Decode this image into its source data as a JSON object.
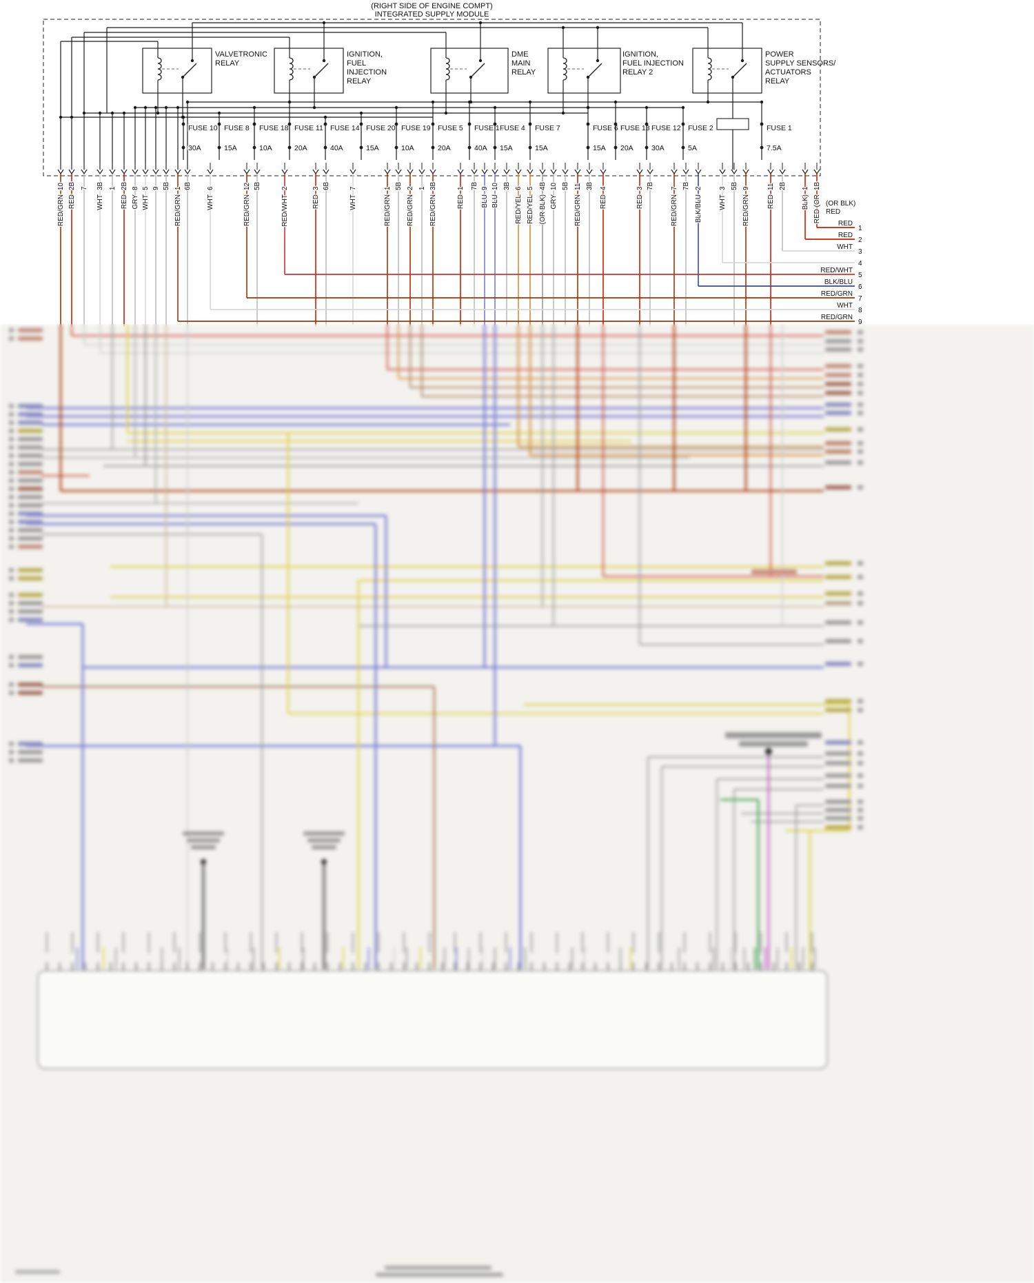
{
  "header": {
    "location": "(RIGHT SIDE OF ENGINE COMPT)",
    "title": "INTEGRATED SUPPLY MODULE"
  },
  "corner": {
    "line1": "(OR BLK)",
    "line2": "RED"
  },
  "relays": [
    {
      "lines": [
        "VALVETRONIC",
        "RELAY"
      ]
    },
    {
      "lines": [
        "IGNITION,",
        "FUEL",
        "INJECTION",
        "RELAY"
      ]
    },
    {
      "lines": [
        "DME",
        "MAIN",
        "RELAY"
      ]
    },
    {
      "lines": [
        "IGNITION,",
        "FUEL INJECTION",
        "RELAY 2"
      ]
    },
    {
      "lines": [
        "POWER",
        "SUPPLY SENSORS/",
        "ACTUATORS",
        "RELAY"
      ]
    }
  ],
  "fuses": [
    {
      "name": "FUSE 10",
      "amp": "30A"
    },
    {
      "name": "FUSE 8",
      "amp": "15A"
    },
    {
      "name": "FUSE 18",
      "amp": "10A"
    },
    {
      "name": "FUSE 11",
      "amp": "20A"
    },
    {
      "name": "FUSE 14",
      "amp": "40A"
    },
    {
      "name": "FUSE 20",
      "amp": "15A"
    },
    {
      "name": "FUSE 19",
      "amp": "10A"
    },
    {
      "name": "FUSE 5",
      "amp": "20A"
    },
    {
      "name": "FUSE 15",
      "amp": "40A"
    },
    {
      "name": "FUSE 4",
      "amp": "15A"
    },
    {
      "name": "FUSE 7",
      "amp": "15A"
    },
    {
      "name": "FUSE 6",
      "amp": "15A"
    },
    {
      "name": "FUSE 13",
      "amp": "20A"
    },
    {
      "name": "FUSE 12",
      "amp": "30A"
    },
    {
      "name": "FUSE 2",
      "amp": "5A"
    },
    {
      "name": "FUSE 1",
      "amp": "7.5A"
    }
  ],
  "pins": [
    {
      "pin": "10",
      "color": "RED/GRN"
    },
    {
      "pin": "2B",
      "color": "RED"
    },
    {
      "pin": "7",
      "color": ""
    },
    {
      "pin": "3B",
      "color": "WHT"
    },
    {
      "pin": "1",
      "color": ""
    },
    {
      "pin": "2B",
      "color": "RED"
    },
    {
      "pin": "8",
      "color": "GRY"
    },
    {
      "pin": "5",
      "color": "WHT"
    },
    {
      "pin": "9",
      "color": ""
    },
    {
      "pin": "5B",
      "color": ""
    },
    {
      "pin": "1",
      "color": "RED/GRN"
    },
    {
      "pin": "6B",
      "color": ""
    },
    {
      "pin": "6",
      "color": "WHT"
    },
    {
      "pin": "12",
      "color": "RED/GRN"
    },
    {
      "pin": "5B",
      "color": ""
    },
    {
      "pin": "2",
      "color": "RED/WHT"
    },
    {
      "pin": "3",
      "color": "RED"
    },
    {
      "pin": "6B",
      "color": ""
    },
    {
      "pin": "7",
      "color": "WHT"
    },
    {
      "pin": "1",
      "color": "RED/GRN"
    },
    {
      "pin": "5B",
      "color": ""
    },
    {
      "pin": "2",
      "color": "RED/GRN"
    },
    {
      "pin": "1",
      "color": ""
    },
    {
      "pin": "3B",
      "color": "RED/GRN"
    },
    {
      "pin": "1",
      "color": "RED"
    },
    {
      "pin": "7B",
      "color": ""
    },
    {
      "pin": "9",
      "color": "BLU"
    },
    {
      "pin": "10",
      "color": "BLU"
    },
    {
      "pin": "3B",
      "color": ""
    },
    {
      "pin": "6",
      "color": "RED/YEL"
    },
    {
      "pin": "5",
      "color": "RED/YEL"
    },
    {
      "pin": "4B",
      "color": "(OR BLK)"
    },
    {
      "pin": "10",
      "color": "GRY"
    },
    {
      "pin": "5B",
      "color": ""
    },
    {
      "pin": "11",
      "color": "RED/GRN"
    },
    {
      "pin": "3B",
      "color": ""
    },
    {
      "pin": "4",
      "color": "RED"
    },
    {
      "pin": "3",
      "color": "RED"
    },
    {
      "pin": "7B",
      "color": ""
    },
    {
      "pin": "7",
      "color": "RED/GRN"
    },
    {
      "pin": "7B",
      "color": ""
    },
    {
      "pin": "2",
      "color": "BLK/BLU"
    },
    {
      "pin": "3",
      "color": "WHT"
    },
    {
      "pin": "5B",
      "color": ""
    },
    {
      "pin": "9",
      "color": "RED/GRN"
    },
    {
      "pin": "11",
      "color": "RED"
    },
    {
      "pin": "2B",
      "color": ""
    },
    {
      "pin": "1",
      "color": "BLK)"
    },
    {
      "pin": "1B",
      "color": "RED (OR"
    }
  ],
  "right_wires": [
    {
      "num": "1",
      "label": "RED"
    },
    {
      "num": "2",
      "label": "RED"
    },
    {
      "num": "3",
      "label": "WHT"
    },
    {
      "num": "4",
      "label": ""
    },
    {
      "num": "5",
      "label": "RED/WHT"
    },
    {
      "num": "6",
      "label": "BLK/BLU"
    },
    {
      "num": "7",
      "label": "RED/GRN"
    },
    {
      "num": "8",
      "label": "WHT"
    },
    {
      "num": "9",
      "label": "RED/GRN"
    }
  ]
}
